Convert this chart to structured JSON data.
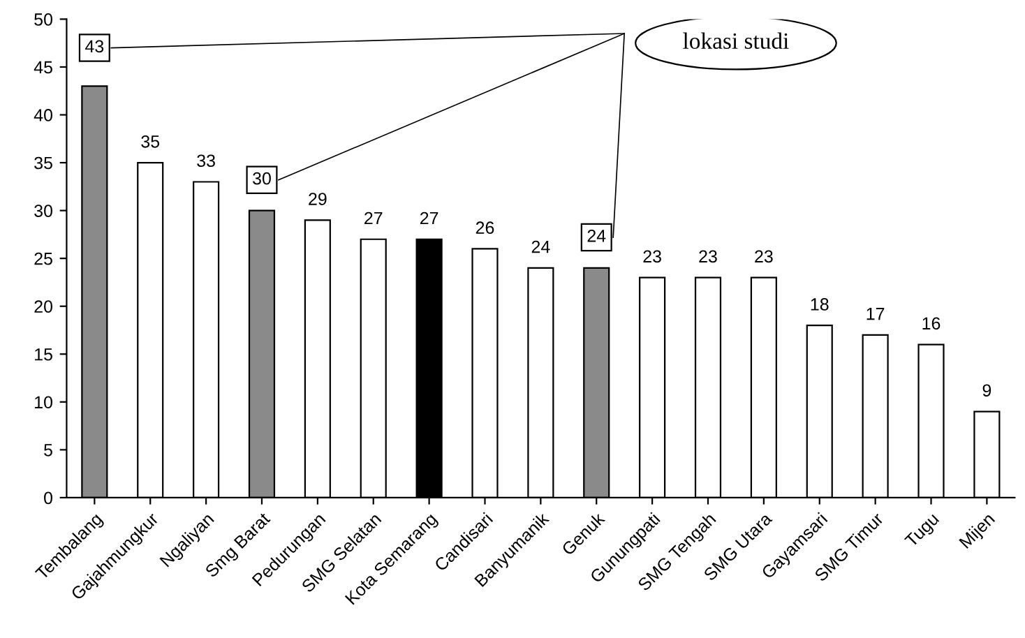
{
  "chart_data": {
    "type": "bar",
    "categories": [
      "Tembalang",
      "Gajahmungkur",
      "Ngaliyan",
      "Smg Barat",
      "Pedurungan",
      "SMG Selatan",
      "Kota Semarang",
      "Candisari",
      "Banyumanik",
      "Genuk",
      "Gunungpati",
      "SMG Tengah",
      "SMG Utara",
      "Gayamsari",
      "SMG Timur",
      "Tugu",
      "Mijen"
    ],
    "values": [
      43,
      35,
      33,
      30,
      29,
      27,
      27,
      26,
      24,
      24,
      23,
      23,
      23,
      18,
      17,
      16,
      9
    ],
    "colors": [
      "#8a8a8a",
      "#ffffff",
      "#ffffff",
      "#8a8a8a",
      "#ffffff",
      "#ffffff",
      "#000000",
      "#ffffff",
      "#ffffff",
      "#8a8a8a",
      "#ffffff",
      "#ffffff",
      "#ffffff",
      "#ffffff",
      "#ffffff",
      "#ffffff",
      "#ffffff"
    ],
    "data_labels": true,
    "annotations": [
      "lokasi studi"
    ],
    "ylim": [
      0,
      50
    ],
    "yticks": [
      0,
      5,
      10,
      15,
      20,
      25,
      30,
      35,
      40,
      45,
      50
    ],
    "grid": false
  }
}
